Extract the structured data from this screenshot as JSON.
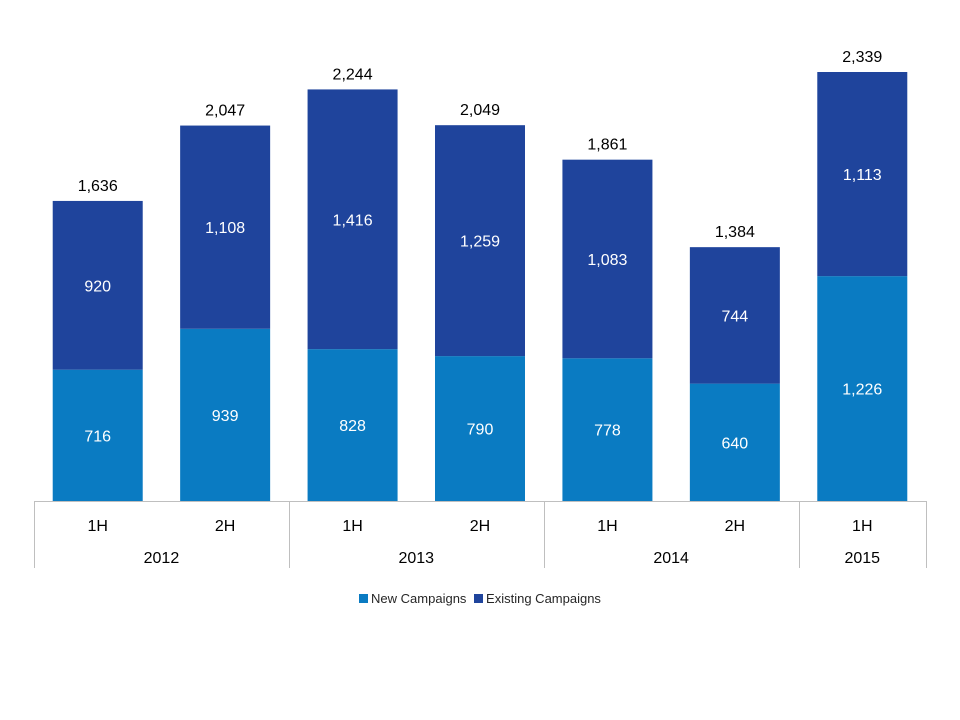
{
  "colors": {
    "new": "#0A7BC2",
    "existing": "#1F449C",
    "axis": "#BFBFBF",
    "text": "#000000",
    "label_on_bar": "#FFFFFF"
  },
  "chart_data": {
    "type": "bar",
    "stacked": true,
    "categories": [
      "1H",
      "2H",
      "1H",
      "2H",
      "1H",
      "2H",
      "1H"
    ],
    "groups": [
      {
        "label": "2012",
        "span": 2
      },
      {
        "label": "2013",
        "span": 2
      },
      {
        "label": "2014",
        "span": 2
      },
      {
        "label": "2015",
        "span": 1
      }
    ],
    "series": [
      {
        "name": "New Campaigns",
        "values": [
          716,
          939,
          828,
          790,
          778,
          640,
          1226
        ],
        "labels": [
          "716",
          "939",
          "828",
          "790",
          "778",
          "640",
          "1,226"
        ]
      },
      {
        "name": "Existing Campaigns",
        "values": [
          920,
          1108,
          1416,
          1259,
          1083,
          744,
          1113
        ],
        "labels": [
          "920",
          "1,108",
          "1,416",
          "1,259",
          "1,083",
          "744",
          "1,113"
        ]
      }
    ],
    "totals": [
      1636,
      2047,
      2244,
      2049,
      1861,
      1384,
      2339
    ],
    "total_labels": [
      "1,636",
      "2,047",
      "2,244",
      "2,049",
      "1,861",
      "1,384",
      "2,339"
    ],
    "ylim": [
      0,
      2339
    ],
    "legend_position": "bottom",
    "grid": false
  }
}
